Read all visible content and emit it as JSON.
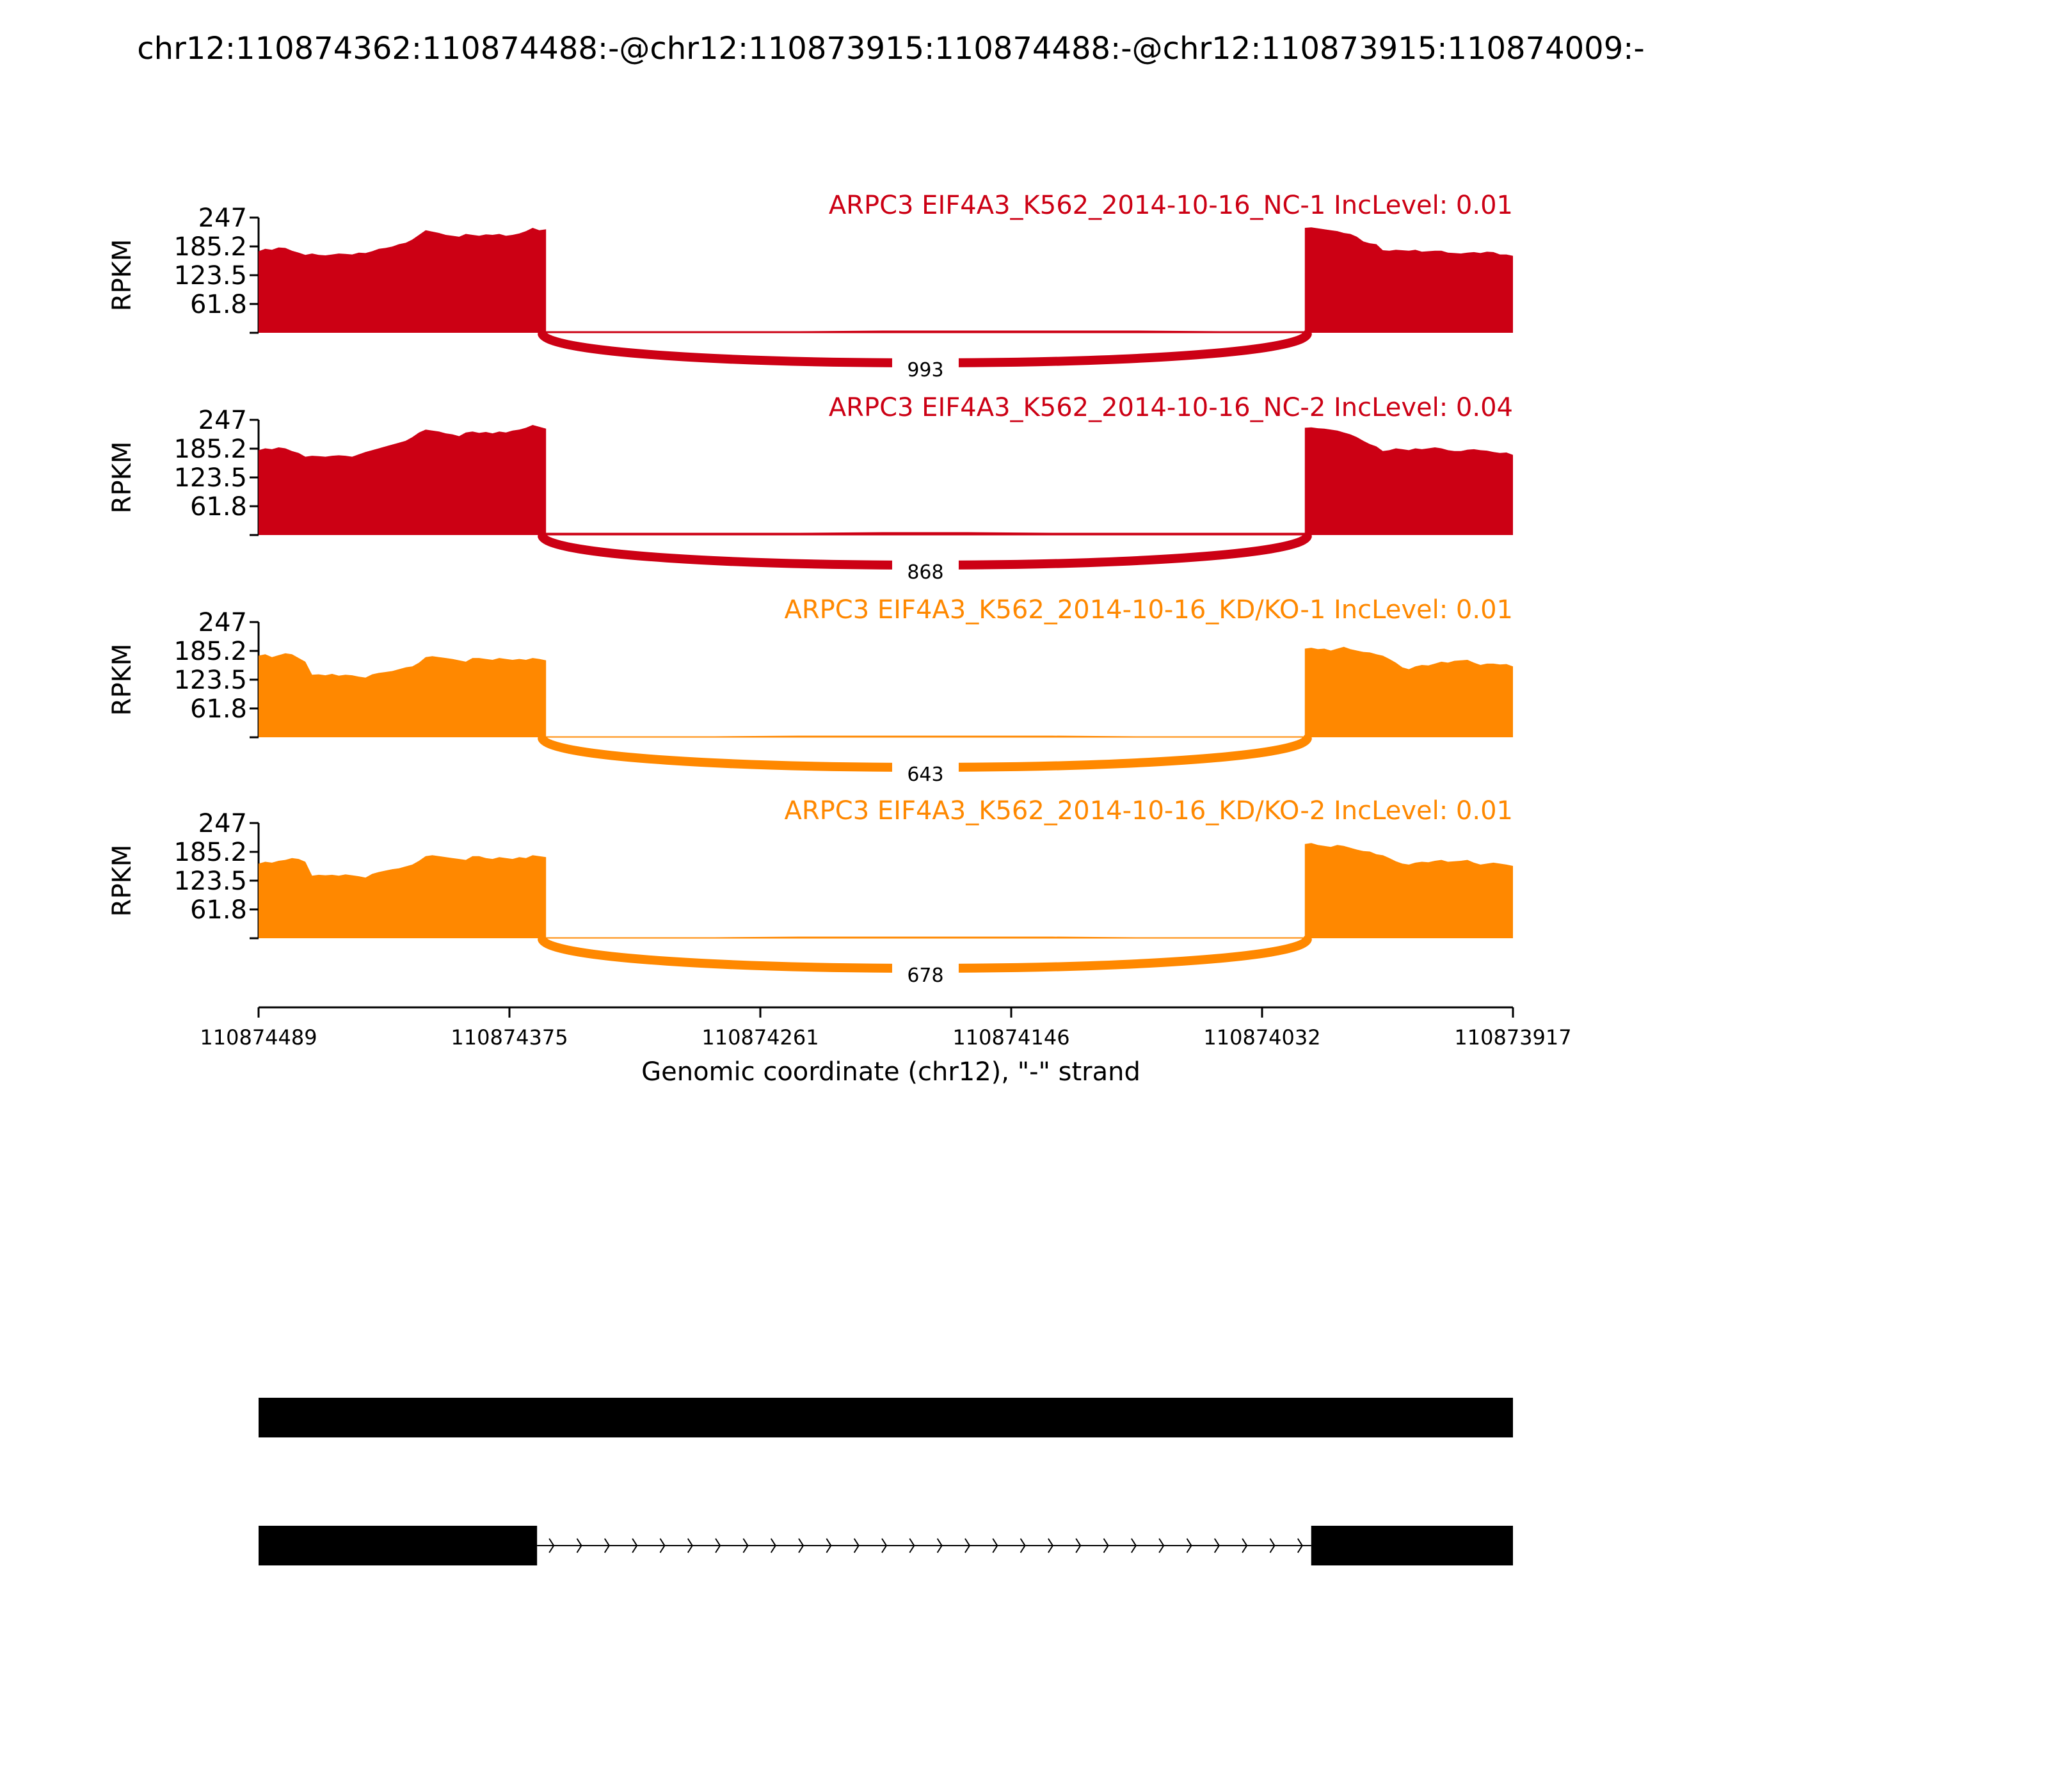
{
  "title": "chr12:110874362:110874488:-@chr12:110873915:110874488:-@chr12:110873915:110874009:-",
  "colors": {
    "nc": "#cc0014",
    "kd": "#ff8800",
    "axis": "#000000",
    "gene": "#000000"
  },
  "chart_data": {
    "type": "area",
    "title": "chr12:110874362:110874488:-@chr12:110873915:110874488:-@chr12:110873915:110874009:-",
    "ylabel": "RPKM",
    "ylim": [
      0,
      247
    ],
    "yticks": [
      "247",
      "185.2",
      "123.5",
      "61.8"
    ],
    "xlabel": "Genomic coordinate (chr12), \"-\" strand",
    "xlim": [
      110874489,
      110873917
    ],
    "xticks": [
      "110874489",
      "110874375",
      "110874261",
      "110874146",
      "110874032",
      "110873917"
    ],
    "exon_upstream": [
      110874489,
      110874362
    ],
    "exon_downstream": [
      110874009,
      110873917
    ],
    "series": [
      {
        "name": "ARPC3 EIF4A3_K562_2014-10-16_NC-1 IncLevel: 0.01",
        "group": "nc",
        "junction_reads": "993",
        "left_exon_profile": [
          175,
          180,
          178,
          183,
          182,
          176,
          172,
          167,
          170,
          167,
          166,
          168,
          170,
          169,
          168,
          172,
          171,
          175,
          180,
          182,
          185,
          190,
          193,
          200,
          210,
          220,
          217,
          214,
          210,
          208,
          206,
          212,
          210,
          208,
          211,
          210,
          212,
          208,
          210,
          213,
          218,
          225,
          220,
          222
        ],
        "right_exon_profile": [
          225,
          226,
          224,
          222,
          220,
          218,
          214,
          212,
          206,
          196,
          192,
          190,
          177,
          176,
          178,
          177,
          176,
          178,
          174,
          175,
          176,
          176,
          172,
          171,
          170,
          172,
          173,
          171,
          174,
          173,
          168,
          168,
          165
        ],
        "skip_profile": [
          2,
          2,
          2,
          2,
          3,
          3,
          3,
          3,
          2,
          2
        ]
      },
      {
        "name": "ARPC3 EIF4A3_K562_2014-10-16_NC-2 IncLevel: 0.04",
        "group": "nc",
        "junction_reads": "868",
        "left_exon_profile": [
          182,
          186,
          184,
          188,
          186,
          180,
          176,
          168,
          170,
          169,
          168,
          170,
          171,
          170,
          168,
          173,
          178,
          182,
          186,
          190,
          194,
          198,
          202,
          210,
          220,
          226,
          224,
          222,
          218,
          216,
          212,
          220,
          222,
          219,
          221,
          218,
          222,
          220,
          224,
          226,
          230,
          236,
          232,
          228
        ],
        "right_exon_profile": [
          230,
          231,
          229,
          228,
          226,
          224,
          220,
          216,
          210,
          202,
          195,
          190,
          180,
          182,
          186,
          184,
          182,
          186,
          184,
          186,
          188,
          186,
          182,
          180,
          180,
          183,
          184,
          182,
          181,
          178,
          176,
          177,
          172
        ],
        "skip_profile": [
          3,
          3,
          3,
          3,
          4,
          4,
          3,
          3,
          3,
          3
        ]
      },
      {
        "name": "ARPC3 EIF4A3_K562_2014-10-16_KD/KO-1 IncLevel: 0.01",
        "group": "kd",
        "junction_reads": "643",
        "left_exon_profile": [
          175,
          178,
          172,
          176,
          180,
          178,
          170,
          162,
          134,
          135,
          133,
          136,
          132,
          134,
          133,
          130,
          128,
          135,
          138,
          140,
          142,
          146,
          150,
          152,
          160,
          172,
          174,
          172,
          170,
          168,
          165,
          162,
          170,
          170,
          168,
          166,
          170,
          168,
          166,
          168,
          166,
          170,
          168,
          165
        ],
        "right_exon_profile": [
          190,
          192,
          189,
          190,
          186,
          190,
          194,
          189,
          186,
          183,
          182,
          178,
          175,
          168,
          160,
          150,
          146,
          152,
          155,
          154,
          158,
          162,
          160,
          164,
          165,
          166,
          160,
          155,
          158,
          158,
          156,
          157,
          152
        ],
        "skip_profile": [
          1,
          1,
          1,
          2,
          2,
          2,
          2,
          1,
          1,
          1
        ]
      },
      {
        "name": "ARPC3 EIF4A3_K562_2014-10-16_KD/KO-2 IncLevel: 0.01",
        "group": "kd",
        "junction_reads": "678",
        "left_exon_profile": [
          160,
          164,
          162,
          166,
          168,
          172,
          170,
          164,
          134,
          136,
          135,
          136,
          134,
          137,
          135,
          133,
          130,
          138,
          142,
          145,
          148,
          150,
          154,
          158,
          166,
          176,
          178,
          176,
          174,
          172,
          170,
          168,
          176,
          176,
          172,
          170,
          174,
          172,
          170,
          174,
          172,
          178,
          176,
          174
        ],
        "right_exon_profile": [
          202,
          204,
          200,
          198,
          196,
          200,
          198,
          194,
          190,
          187,
          186,
          180,
          178,
          172,
          165,
          160,
          158,
          162,
          164,
          163,
          166,
          168,
          164,
          165,
          166,
          168,
          162,
          158,
          160,
          162,
          160,
          158,
          155
        ],
        "skip_profile": [
          1,
          1,
          1,
          2,
          2,
          2,
          2,
          1,
          1,
          1
        ]
      }
    ],
    "gene_models": [
      {
        "type": "exon-inclusion",
        "exons": [
          [
            110874489,
            110873917
          ]
        ]
      },
      {
        "type": "exon-skipping",
        "exons": [
          [
            110874489,
            110874362
          ],
          [
            110874009,
            110873917
          ]
        ],
        "intron_arrows": 28
      }
    ]
  }
}
